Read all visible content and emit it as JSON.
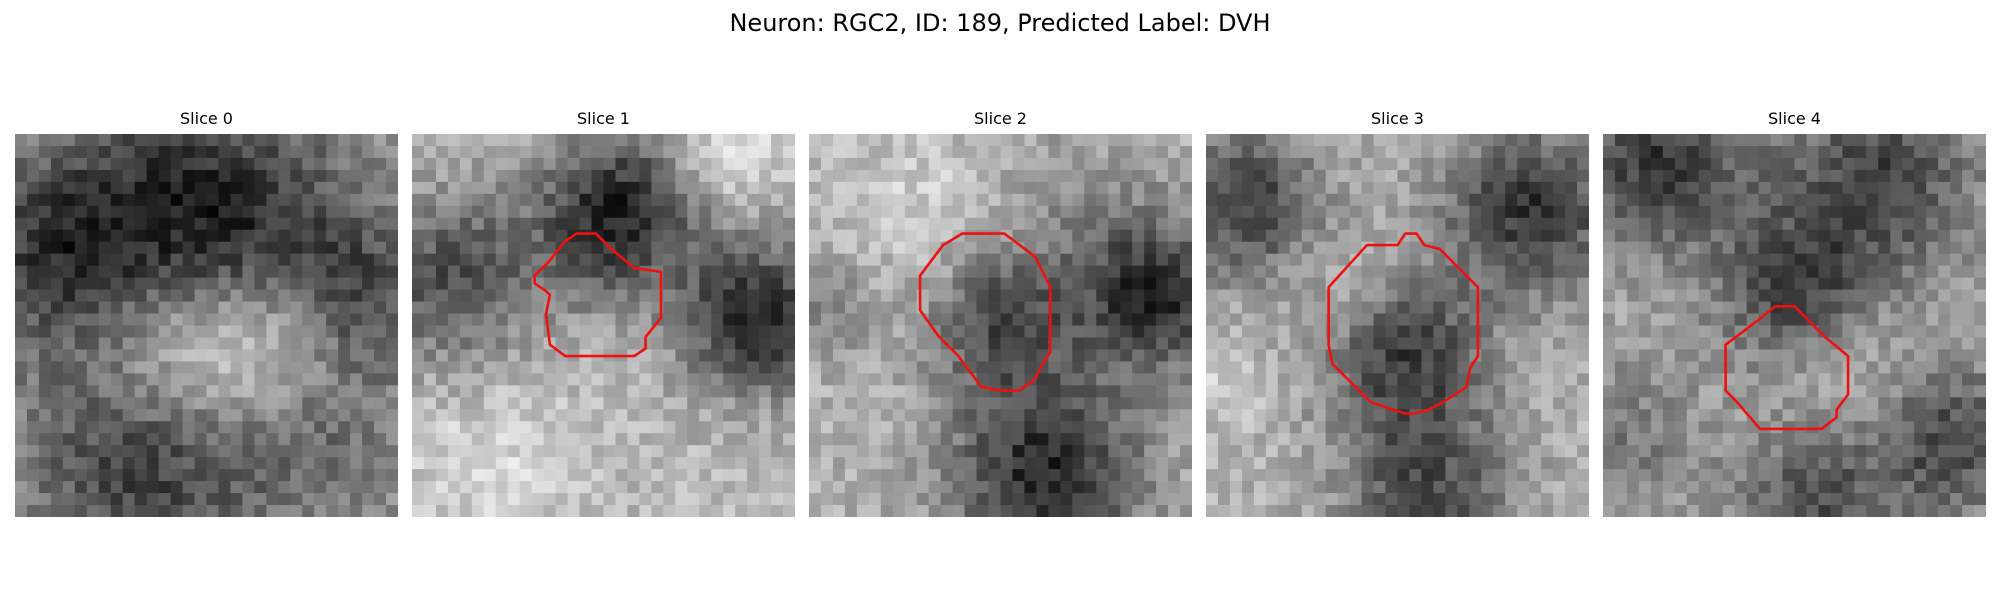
{
  "figure": {
    "title": "Neuron: RGC2, ID: 189, Predicted Label: DVH",
    "colormap": "gray",
    "contour_color": "#ee1111"
  },
  "panels": [
    {
      "title": "Slice 0"
    },
    {
      "title": "Slice 1"
    },
    {
      "title": "Slice 2"
    },
    {
      "title": "Slice 3"
    },
    {
      "title": "Slice 4"
    }
  ]
}
